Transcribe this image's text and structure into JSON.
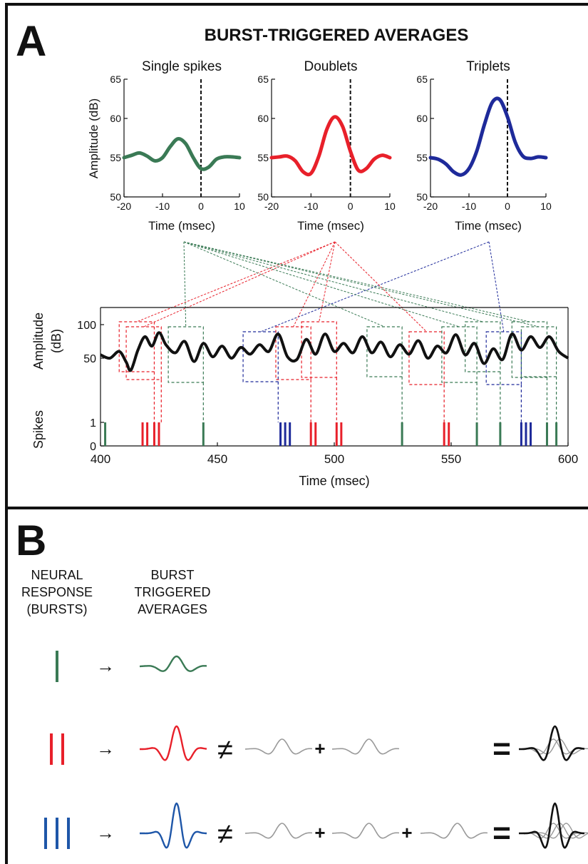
{
  "panel_a": {
    "letter": "A",
    "title": "BURST-TRIGGERED AVERAGES"
  },
  "panel_b": {
    "letter": "B",
    "col1": [
      "NEURAL",
      "RESPONSE",
      "(BURSTS)"
    ],
    "col2": [
      "BURST",
      "TRIGGERED",
      "AVERAGES"
    ],
    "rows": [
      {
        "bars": 1,
        "color": "#3a7a55",
        "terms": 0
      },
      {
        "bars": 2,
        "color": "#e8202a",
        "terms": 2
      },
      {
        "bars": 3,
        "color": "#1e56a8",
        "terms": 3
      }
    ],
    "symbols": {
      "arrow": "→",
      "neq": "≠",
      "plus": "+",
      "eq": "="
    }
  },
  "colors": {
    "single": "#3a7a55",
    "doublet": "#e8202a",
    "triplet": "#1e2a9a",
    "trace": "#111111",
    "component": "#999999"
  },
  "chart_data": [
    {
      "type": "line",
      "title": "Single spikes",
      "xlabel": "Time (msec)",
      "ylabel": "Amplitude (dB)",
      "xlim": [
        -20,
        10
      ],
      "ylim": [
        50,
        65
      ],
      "xticks": [
        -20,
        -10,
        0,
        10
      ],
      "yticks": [
        50,
        55,
        60,
        65
      ],
      "xtick_labels": [
        "-20",
        "-10",
        "0",
        "10"
      ],
      "ytick_labels": [
        "50",
        "55",
        "60",
        "65"
      ],
      "x": [
        -20,
        -18,
        -16,
        -14,
        -12,
        -10,
        -8,
        -6,
        -4,
        -2,
        0,
        2,
        4,
        6,
        8,
        10
      ],
      "y": [
        55.0,
        55.3,
        55.6,
        55.2,
        54.6,
        55.0,
        56.4,
        57.4,
        56.8,
        55.0,
        53.6,
        53.8,
        54.8,
        55.1,
        55.1,
        55.0
      ],
      "color": "#3a7a55"
    },
    {
      "type": "line",
      "title": "Doublets",
      "xlabel": "Time (msec)",
      "ylabel": "",
      "xlim": [
        -20,
        10
      ],
      "ylim": [
        50,
        65
      ],
      "xticks": [
        -20,
        -10,
        0,
        10
      ],
      "yticks": [
        50,
        55,
        60,
        65
      ],
      "xtick_labels": [
        "-20",
        "-10",
        "0",
        "10"
      ],
      "ytick_labels": [
        "50",
        "55",
        "60",
        "65"
      ],
      "x": [
        -20,
        -18,
        -16,
        -14,
        -12,
        -10,
        -8,
        -6,
        -4,
        -2,
        0,
        2,
        4,
        6,
        8,
        10
      ],
      "y": [
        55.0,
        55.1,
        55.2,
        54.6,
        53.2,
        53.0,
        55.2,
        58.6,
        60.2,
        59.0,
        55.8,
        53.4,
        53.6,
        54.8,
        55.3,
        55.0
      ],
      "color": "#e8202a"
    },
    {
      "type": "line",
      "title": "Triplets",
      "xlabel": "Time (msec)",
      "ylabel": "",
      "xlim": [
        -20,
        10
      ],
      "ylim": [
        50,
        65
      ],
      "xticks": [
        -20,
        -10,
        0,
        10
      ],
      "yticks": [
        50,
        55,
        60,
        65
      ],
      "xtick_labels": [
        "-20",
        "-10",
        "0",
        "10"
      ],
      "ytick_labels": [
        "50",
        "55",
        "60",
        "65"
      ],
      "x": [
        -20,
        -18,
        -16,
        -14,
        -12,
        -10,
        -8,
        -6,
        -4,
        -2,
        0,
        2,
        4,
        6,
        8,
        10
      ],
      "y": [
        55.0,
        54.8,
        54.2,
        53.2,
        52.8,
        53.6,
        55.8,
        59.2,
        62.0,
        62.4,
        60.2,
        57.0,
        55.2,
        54.9,
        55.1,
        55.0
      ],
      "color": "#1e2a9a"
    },
    {
      "type": "line",
      "title": "",
      "xlabel": "Time (msec)",
      "ylabel": "Amplitude\n(dB)",
      "spikes_label": "Spikes",
      "xlim": [
        400,
        600
      ],
      "ylim": [
        20,
        120
      ],
      "xticks": [
        400,
        450,
        500,
        550,
        600
      ],
      "yticks": [
        50,
        100
      ],
      "xtick_labels": [
        "400",
        "450",
        "500",
        "550",
        "600"
      ],
      "ytick_labels": [
        "50",
        "100"
      ],
      "spike_yticks": [
        "0",
        "1"
      ],
      "x": [
        400,
        404,
        408,
        411,
        413,
        416,
        419,
        422,
        425,
        428,
        432,
        436,
        440,
        444,
        448,
        452,
        456,
        460,
        464,
        468,
        472,
        476,
        480,
        484,
        488,
        492,
        496,
        500,
        504,
        508,
        512,
        516,
        520,
        524,
        528,
        532,
        536,
        540,
        544,
        548,
        552,
        556,
        560,
        564,
        568,
        572,
        576,
        580,
        584,
        588,
        592,
        596,
        600
      ],
      "y": [
        55,
        50,
        60,
        44,
        32,
        62,
        82,
        68,
        88,
        70,
        58,
        75,
        45,
        72,
        52,
        68,
        50,
        66,
        56,
        70,
        60,
        86,
        52,
        48,
        78,
        56,
        86,
        60,
        72,
        58,
        82,
        58,
        74,
        52,
        70,
        56,
        76,
        50,
        68,
        58,
        85,
        55,
        72,
        42,
        64,
        48,
        86,
        62,
        82,
        66,
        82,
        60,
        50
      ],
      "line_color": "#111111",
      "spikes": [
        {
          "t": 402,
          "group": "single"
        },
        {
          "t": 418,
          "group": "doublet"
        },
        {
          "t": 420,
          "group": "doublet"
        },
        {
          "t": 423,
          "group": "doublet"
        },
        {
          "t": 425,
          "group": "doublet"
        },
        {
          "t": 444,
          "group": "single"
        },
        {
          "t": 477,
          "group": "triplet"
        },
        {
          "t": 479,
          "group": "triplet"
        },
        {
          "t": 481,
          "group": "triplet"
        },
        {
          "t": 490,
          "group": "doublet"
        },
        {
          "t": 492,
          "group": "doublet"
        },
        {
          "t": 501,
          "group": "doublet"
        },
        {
          "t": 503,
          "group": "doublet"
        },
        {
          "t": 529,
          "group": "single"
        },
        {
          "t": 547,
          "group": "doublet"
        },
        {
          "t": 549,
          "group": "doublet"
        },
        {
          "t": 561,
          "group": "single"
        },
        {
          "t": 571,
          "group": "single"
        },
        {
          "t": 580,
          "group": "triplet"
        },
        {
          "t": 582,
          "group": "triplet"
        },
        {
          "t": 584,
          "group": "triplet"
        },
        {
          "t": 591,
          "group": "single"
        },
        {
          "t": 595,
          "group": "single"
        }
      ],
      "windows": [
        {
          "group": "doublet",
          "t0": 408,
          "t1": 423
        },
        {
          "group": "doublet",
          "t0": 411,
          "t1": 426
        },
        {
          "group": "single",
          "t0": 429,
          "t1": 444
        },
        {
          "group": "triplet",
          "t0": 461,
          "t1": 476
        },
        {
          "group": "doublet",
          "t0": 475,
          "t1": 490
        },
        {
          "group": "doublet",
          "t0": 486,
          "t1": 501
        },
        {
          "group": "single",
          "t0": 514,
          "t1": 529
        },
        {
          "group": "doublet",
          "t0": 532,
          "t1": 547
        },
        {
          "group": "single",
          "t0": 546,
          "t1": 561
        },
        {
          "group": "single",
          "t0": 556,
          "t1": 571
        },
        {
          "group": "triplet",
          "t0": 565,
          "t1": 580
        },
        {
          "group": "single",
          "t0": 576,
          "t1": 591
        },
        {
          "group": "single",
          "t0": 580,
          "t1": 595
        }
      ]
    }
  ]
}
